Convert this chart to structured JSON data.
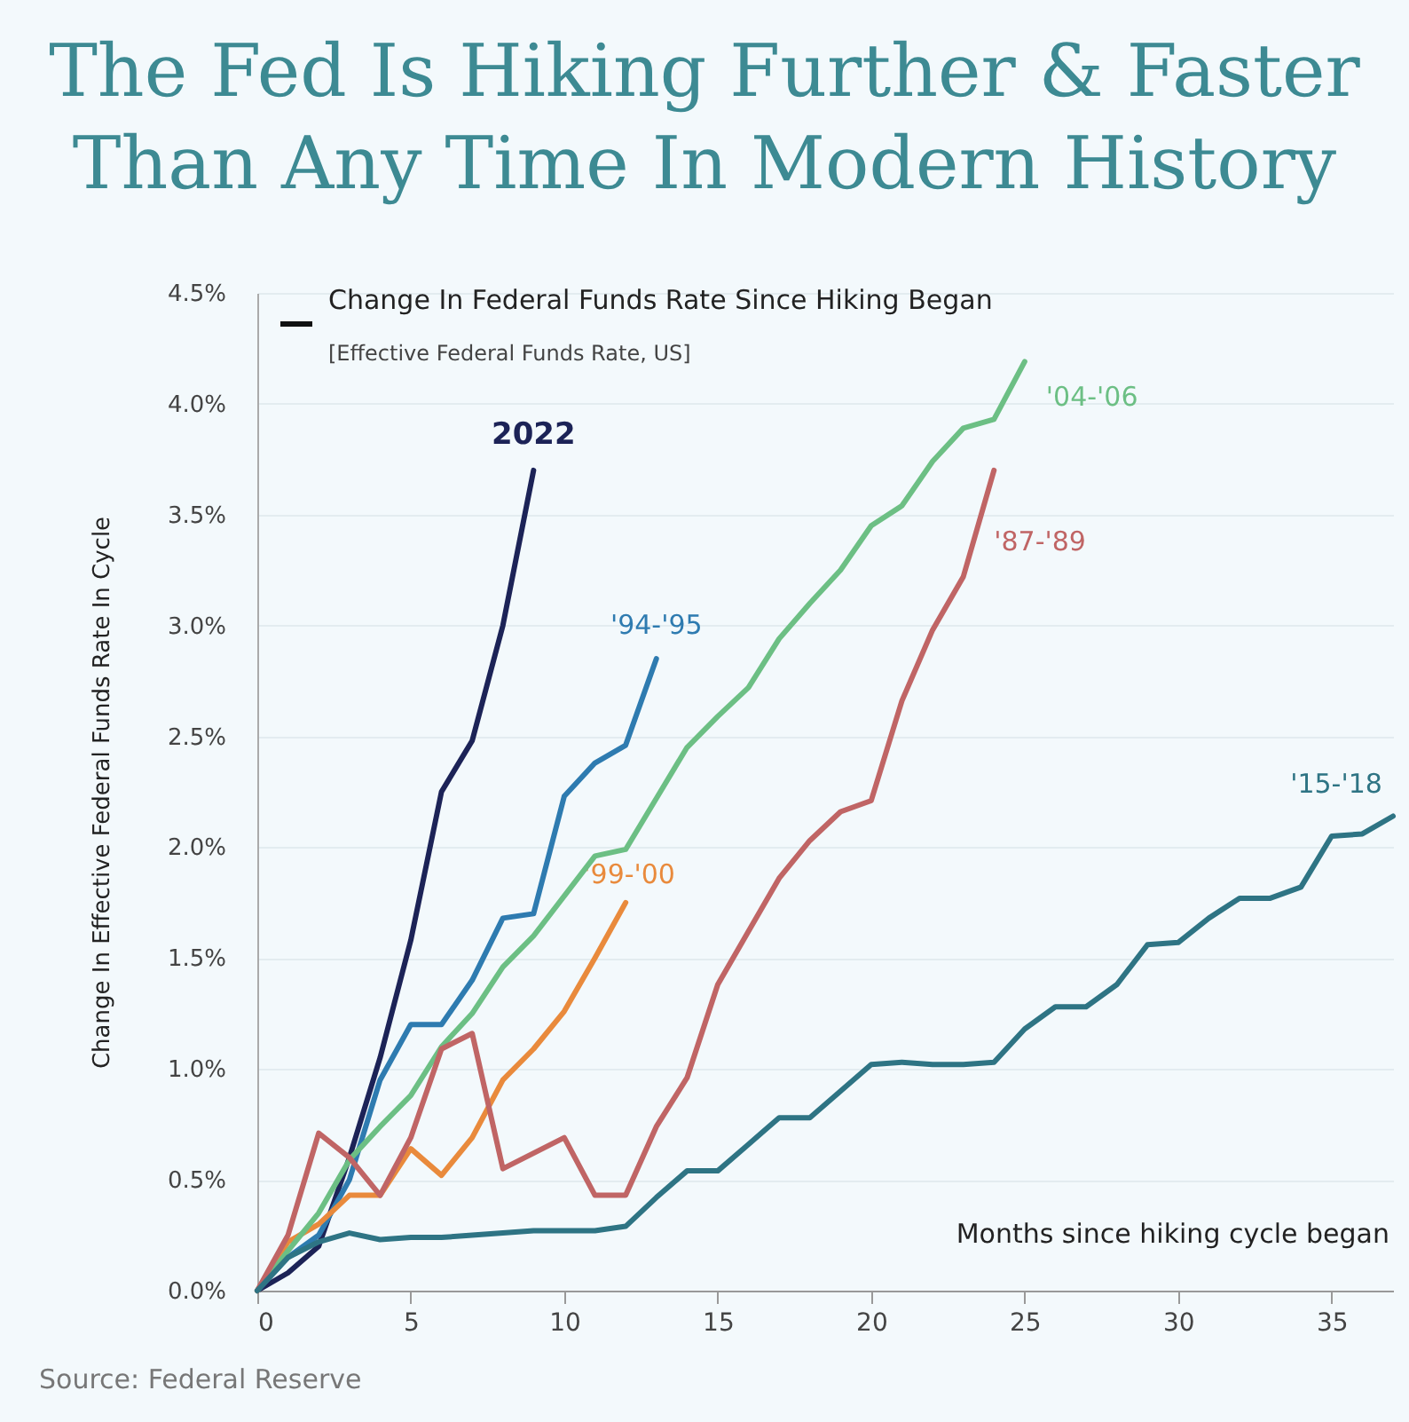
{
  "chart_data": {
    "type": "line",
    "title": "The Fed Is Hiking Further & Faster Than Any Time In Modern History",
    "subtitle": "Change In Federal Funds Rate Since Hiking Began",
    "xlabel": "Months since hiking cycle began",
    "ylabel": "Change In Effective Federal Funds Rate In Cycle",
    "annotations": [
      "[Effective Federal Funds Rate, US]",
      "Source: Federal Reserve"
    ],
    "xlim": [
      0,
      37
    ],
    "xticks": [
      0,
      5,
      10,
      15,
      20,
      25,
      30,
      35
    ],
    "ylim": [
      0,
      4.5
    ],
    "yticks": [
      {
        "value": 0,
        "label": "0.0%"
      },
      {
        "value": 0.5,
        "label": "0.5%"
      },
      {
        "value": 1,
        "label": "1.0%"
      },
      {
        "value": 1.5,
        "label": "1.5%"
      },
      {
        "value": 2,
        "label": "2.0%"
      },
      {
        "value": 2.5,
        "label": "2.5%"
      },
      {
        "value": 3,
        "label": "3.0%"
      },
      {
        "value": 3.5,
        "label": "3.5%"
      },
      {
        "value": 4,
        "label": "4.0%"
      },
      {
        "value": 4.5,
        "label": "4.5%"
      }
    ],
    "grid": "y",
    "line_style": "solid",
    "series": [
      {
        "name": "2022",
        "color": "#1c2357",
        "x": [
          0,
          1,
          2,
          3,
          4,
          5,
          6,
          7,
          8,
          9
        ],
        "values": [
          0,
          0.08,
          0.2,
          0.6,
          1.05,
          1.58,
          2.25,
          2.48,
          3.0,
          3.7
        ]
      },
      {
        "name": "'94-'95",
        "color": "#2e7bb0",
        "x": [
          0,
          1,
          2,
          3,
          4,
          5,
          6,
          7,
          8,
          9,
          10,
          11,
          12,
          13
        ],
        "values": [
          0,
          0.15,
          0.25,
          0.5,
          0.95,
          1.2,
          1.2,
          1.4,
          1.68,
          1.7,
          2.23,
          2.38,
          2.46,
          2.85
        ]
      },
      {
        "name": "'99-'00",
        "color": "#e98a3c",
        "x": [
          0,
          1,
          2,
          3,
          4,
          5,
          6,
          7,
          8,
          9,
          10,
          11,
          12
        ],
        "values": [
          0,
          0.22,
          0.3,
          0.43,
          0.43,
          0.64,
          0.52,
          0.69,
          0.95,
          1.09,
          1.26,
          1.5,
          1.75
        ]
      },
      {
        "name": "'04-'06",
        "color": "#6cbf84",
        "x": [
          0,
          1,
          2,
          3,
          4,
          5,
          6,
          7,
          8,
          9,
          10,
          11,
          12,
          13,
          14,
          15,
          16,
          17,
          18,
          19,
          20,
          21,
          22,
          23,
          24,
          25
        ],
        "values": [
          0,
          0.18,
          0.35,
          0.59,
          0.74,
          0.88,
          1.1,
          1.25,
          1.46,
          1.6,
          1.78,
          1.96,
          1.99,
          2.22,
          2.45,
          2.59,
          2.72,
          2.94,
          3.1,
          3.25,
          3.45,
          3.54,
          3.74,
          3.89,
          3.93,
          4.19
        ]
      },
      {
        "name": "'87-'89",
        "color": "#c06565",
        "x": [
          0,
          1,
          2,
          3,
          4,
          5,
          6,
          7,
          8,
          9,
          10,
          11,
          12,
          13,
          14,
          15,
          16,
          17,
          18,
          19,
          20,
          21,
          22,
          23,
          24
        ],
        "values": [
          0,
          0.25,
          0.71,
          0.6,
          0.43,
          0.69,
          1.09,
          1.16,
          0.55,
          0.62,
          0.69,
          0.43,
          0.43,
          0.74,
          0.96,
          1.38,
          1.62,
          1.86,
          2.03,
          2.16,
          2.21,
          2.66,
          2.98,
          3.22,
          3.7
        ]
      },
      {
        "name": "'15-'18",
        "color": "#2e7484",
        "x": [
          0,
          1,
          2,
          3,
          4,
          5,
          6,
          7,
          8,
          9,
          10,
          11,
          12,
          13,
          14,
          15,
          16,
          17,
          18,
          19,
          20,
          21,
          22,
          23,
          24,
          25,
          26,
          27,
          28,
          29,
          30,
          31,
          32,
          33,
          34,
          35,
          36,
          37
        ],
        "values": [
          0,
          0.15,
          0.22,
          0.26,
          0.23,
          0.24,
          0.24,
          0.25,
          0.26,
          0.27,
          0.27,
          0.27,
          0.29,
          0.42,
          0.54,
          0.54,
          0.66,
          0.78,
          0.78,
          0.9,
          1.02,
          1.03,
          1.02,
          1.02,
          1.03,
          1.18,
          1.28,
          1.28,
          1.38,
          1.56,
          1.57,
          1.68,
          1.77,
          1.77,
          1.82,
          2.05,
          2.06,
          2.14
        ]
      }
    ]
  }
}
